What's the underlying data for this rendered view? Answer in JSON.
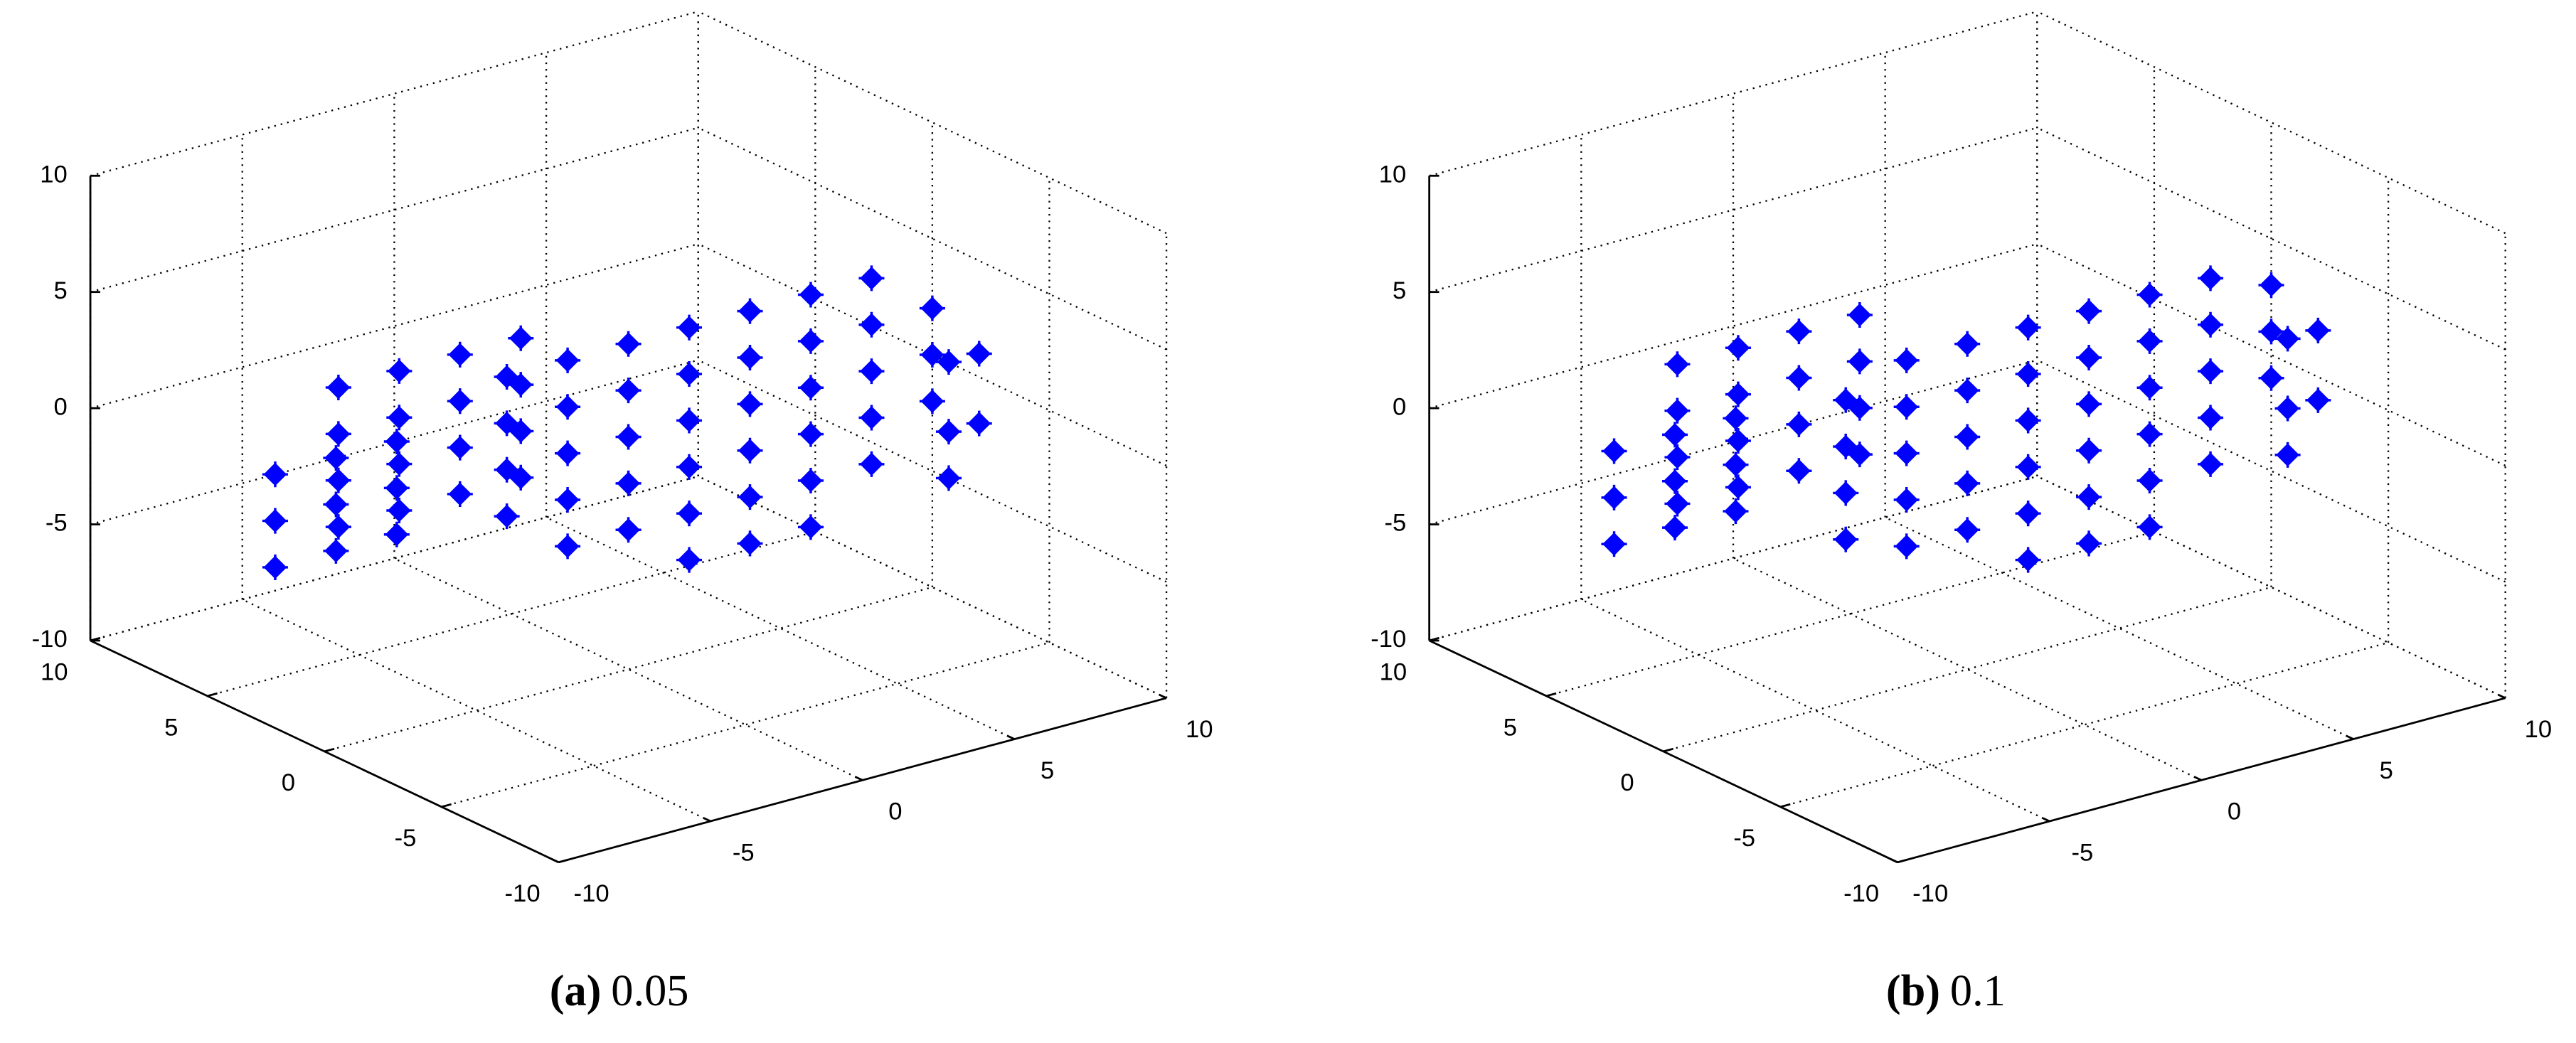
{
  "chart_data": [
    {
      "type": "scatter3d",
      "label": "(a)",
      "caption": "0.05",
      "color": "#0000ff",
      "grid": true,
      "xlim": [
        -10,
        10
      ],
      "ylim": [
        -10,
        10
      ],
      "zlim": [
        -10,
        10
      ],
      "xticks": [
        -10,
        -5,
        0,
        5,
        10
      ],
      "yticks": [
        -10,
        -5,
        0,
        5,
        10
      ],
      "zticks": [
        -10,
        -5,
        0,
        5,
        10
      ],
      "x": [
        -8,
        -8,
        -8,
        -8,
        -6,
        -6,
        -6,
        -6,
        -4,
        -4,
        -4,
        -4,
        -2,
        -2,
        -2,
        -2,
        -7,
        -7,
        -7,
        -5,
        -5,
        -5,
        -3,
        -3,
        -3,
        -4,
        -4,
        -4,
        -4,
        -2,
        -2,
        -2,
        -2,
        -2,
        0,
        0,
        0,
        0,
        0,
        2,
        2,
        2,
        2,
        2,
        4,
        4,
        4,
        4,
        4,
        6,
        6,
        6,
        6,
        6,
        8,
        8,
        8,
        8,
        8,
        10,
        10,
        10,
        2,
        4,
        6,
        10,
        10,
        9,
        9,
        9
      ],
      "y": [
        2,
        2,
        2,
        2,
        2,
        2,
        2,
        2,
        2,
        2,
        2,
        2,
        2,
        2,
        2,
        2,
        6,
        6,
        6,
        6,
        6,
        6,
        6,
        6,
        6,
        0,
        0,
        0,
        0,
        0,
        0,
        0,
        0,
        0,
        0,
        0,
        0,
        0,
        0,
        0,
        0,
        0,
        0,
        0,
        0,
        0,
        0,
        0,
        0,
        0,
        0,
        0,
        0,
        0,
        0,
        0,
        0,
        0,
        0,
        0,
        0,
        0,
        0,
        0,
        0,
        -2,
        -2,
        -2,
        -2,
        -2
      ],
      "z": [
        4,
        2,
        0,
        -2,
        4,
        2,
        0,
        -2,
        4,
        2,
        0,
        -2,
        4,
        2,
        0,
        -2,
        -2,
        -4,
        -6,
        -2,
        -4,
        -6,
        -2,
        -4,
        -6,
        4,
        2,
        0,
        -2,
        4,
        2,
        0,
        -2,
        -4,
        4,
        2,
        0,
        -2,
        -4,
        4,
        2,
        0,
        -2,
        -4,
        4,
        2,
        0,
        -2,
        -4,
        4,
        2,
        0,
        -2,
        -4,
        4,
        2,
        0,
        -2,
        -4,
        2,
        0,
        -2,
        -6,
        -6,
        -6,
        1,
        -2,
        1,
        -2,
        -4
      ]
    },
    {
      "type": "scatter3d",
      "label": "(b)",
      "caption": "0.1",
      "color": "#0000ff",
      "grid": true,
      "xlim": [
        -10,
        10
      ],
      "ylim": [
        -10,
        10
      ],
      "zlim": [
        -10,
        10
      ],
      "xticks": [
        -10,
        -5,
        0,
        5,
        10
      ],
      "yticks": [
        -10,
        -5,
        0,
        5,
        10
      ],
      "zticks": [
        -10,
        -5,
        0,
        5,
        10
      ],
      "x": [
        -8,
        -8,
        -8,
        -8,
        -6,
        -6,
        -6,
        -6,
        -4,
        -4,
        -4,
        -4,
        -2,
        -2,
        -2,
        -2,
        -7,
        -7,
        -7,
        -5,
        -5,
        -5,
        -3,
        -3,
        -3,
        -4,
        -4,
        -4,
        -4,
        -2,
        -2,
        -2,
        -2,
        -2,
        0,
        0,
        0,
        0,
        0,
        2,
        2,
        2,
        2,
        2,
        4,
        4,
        4,
        4,
        4,
        6,
        6,
        6,
        6,
        6,
        8,
        8,
        8,
        8,
        8,
        10,
        10,
        10,
        2,
        4,
        6,
        10,
        10,
        9,
        9,
        9
      ],
      "y": [
        2,
        2,
        2,
        2,
        2,
        2,
        2,
        2,
        2,
        2,
        2,
        2,
        2,
        2,
        2,
        2,
        6,
        6,
        6,
        6,
        6,
        6,
        6,
        6,
        6,
        0,
        0,
        0,
        0,
        0,
        0,
        0,
        0,
        0,
        0,
        0,
        0,
        0,
        0,
        0,
        0,
        0,
        0,
        0,
        0,
        0,
        0,
        0,
        0,
        0,
        0,
        0,
        0,
        0,
        0,
        0,
        0,
        0,
        0,
        0,
        0,
        0,
        0,
        0,
        0,
        -2,
        -2,
        -2,
        -2,
        -2
      ],
      "z": [
        5,
        3,
        1,
        -1,
        5,
        3,
        1,
        -1,
        5,
        3,
        1,
        -1,
        5,
        3,
        1,
        -1,
        -1,
        -3,
        -5,
        -1,
        -3,
        -5,
        -1,
        -3,
        -5,
        3,
        1,
        -1,
        -3,
        4,
        2,
        0,
        -2,
        -4,
        4,
        2,
        0,
        -2,
        -4,
        4,
        2,
        0,
        -2,
        -4,
        4,
        2,
        0,
        -2,
        -4,
        4,
        2,
        0,
        -2,
        -4,
        4,
        2,
        0,
        -2,
        -4,
        3,
        1,
        -1,
        -6,
        -6,
        -6,
        2,
        -1,
        2,
        -1,
        -3
      ]
    }
  ]
}
